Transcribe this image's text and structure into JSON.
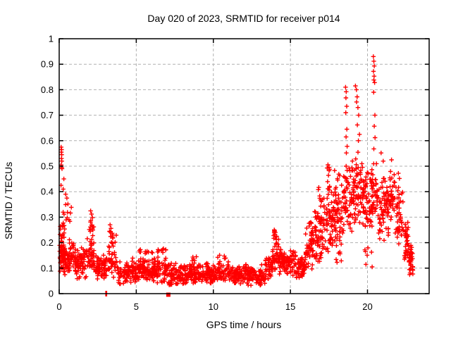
{
  "window": {
    "background": "#ffffff"
  },
  "chart_data": {
    "type": "scatter",
    "title": "Day 020 of 2023, SRMTID for receiver p014",
    "xlabel": "GPS time / hours",
    "ylabel": "SRMTID / TECUs",
    "xlim": [
      0,
      24
    ],
    "ylim": [
      0,
      1
    ],
    "xticks": {
      "values": [
        0,
        5,
        10,
        15,
        20
      ],
      "labels": [
        "0",
        "5",
        "10",
        "15",
        "20"
      ]
    },
    "yticks": {
      "values": [
        0,
        0.1,
        0.2,
        0.3,
        0.4,
        0.5,
        0.6,
        0.7,
        0.8,
        0.9,
        1
      ],
      "labels": [
        "0",
        "0.1",
        "0.2",
        "0.3",
        "0.4",
        "0.5",
        "0.6",
        "0.7",
        "0.8",
        "0.9",
        "1"
      ]
    },
    "grid": {
      "shown": true,
      "style": "dashed",
      "color": "#b0b0b0"
    },
    "legend": "none",
    "axis_color": "#000000",
    "marker": {
      "type": "plus",
      "color": "#ff0000",
      "size": 7
    },
    "series": [
      {
        "name": "SRMTID",
        "description": "Dense noisy scatter; band_segments give [x_start_h, x_end_h, y_min_TECU, y_max_TECU, n_points] envelopes read from the plot; outlier_points are individually visible markers.",
        "band_segments": [
          [
            0.02,
            0.35,
            0.08,
            0.23,
            45
          ],
          [
            0.05,
            0.45,
            0.2,
            0.3,
            14
          ],
          [
            0.25,
            0.8,
            0.27,
            0.36,
            12
          ],
          [
            0.3,
            1.05,
            0.07,
            0.22,
            75
          ],
          [
            1.05,
            1.75,
            0.055,
            0.19,
            65
          ],
          [
            1.75,
            2.3,
            0.07,
            0.24,
            50
          ],
          [
            1.95,
            2.28,
            0.23,
            0.31,
            12
          ],
          [
            2.3,
            3.15,
            0.05,
            0.16,
            65
          ],
          [
            3.18,
            3.78,
            0.06,
            0.23,
            40
          ],
          [
            3.25,
            3.72,
            0.2,
            0.265,
            10
          ],
          [
            3.78,
            4.6,
            0.035,
            0.13,
            60
          ],
          [
            4.6,
            5.05,
            0.04,
            0.145,
            35
          ],
          [
            5.05,
            6.1,
            0.04,
            0.15,
            85
          ],
          [
            5.15,
            6.05,
            0.14,
            0.185,
            12
          ],
          [
            6.1,
            7.1,
            0.04,
            0.15,
            75
          ],
          [
            6.3,
            6.95,
            0.145,
            0.19,
            9
          ],
          [
            7.1,
            8.3,
            0.03,
            0.12,
            90
          ],
          [
            8.3,
            9.6,
            0.035,
            0.125,
            95
          ],
          [
            8.4,
            8.9,
            0.125,
            0.15,
            5
          ],
          [
            9.6,
            11.0,
            0.04,
            0.13,
            100
          ],
          [
            10.2,
            10.8,
            0.13,
            0.155,
            5
          ],
          [
            11.0,
            12.2,
            0.035,
            0.12,
            90
          ],
          [
            12.2,
            13.35,
            0.03,
            0.115,
            85
          ],
          [
            13.35,
            13.8,
            0.05,
            0.16,
            35
          ],
          [
            13.8,
            14.25,
            0.08,
            0.23,
            40
          ],
          [
            13.85,
            14.15,
            0.2,
            0.255,
            7
          ],
          [
            14.25,
            15.35,
            0.07,
            0.2,
            90
          ],
          [
            15.35,
            15.95,
            0.05,
            0.155,
            50
          ],
          [
            15.95,
            16.55,
            0.09,
            0.27,
            55
          ],
          [
            16.1,
            16.5,
            0.25,
            0.31,
            6
          ],
          [
            16.55,
            17.15,
            0.11,
            0.36,
            55
          ],
          [
            16.8,
            17.15,
            0.33,
            0.42,
            7
          ],
          [
            17.15,
            17.75,
            0.14,
            0.47,
            60
          ],
          [
            17.3,
            17.6,
            0.45,
            0.53,
            6
          ],
          [
            17.75,
            18.45,
            0.18,
            0.52,
            70
          ],
          [
            17.8,
            18.4,
            0.12,
            0.18,
            6
          ],
          [
            18.45,
            19.15,
            0.22,
            0.56,
            70
          ],
          [
            19.15,
            19.75,
            0.27,
            0.58,
            60
          ],
          [
            19.75,
            20.3,
            0.24,
            0.55,
            60
          ],
          [
            19.8,
            20.3,
            0.12,
            0.2,
            5
          ],
          [
            20.3,
            20.65,
            0.25,
            0.55,
            35
          ],
          [
            20.65,
            21.4,
            0.2,
            0.5,
            70
          ],
          [
            21.4,
            21.78,
            0.27,
            0.52,
            35
          ],
          [
            21.78,
            22.3,
            0.18,
            0.46,
            45
          ],
          [
            22.3,
            22.65,
            0.11,
            0.3,
            35
          ],
          [
            22.65,
            22.95,
            0.065,
            0.2,
            40
          ]
        ],
        "outlier_points": [
          [
            0.13,
            0.575
          ],
          [
            0.155,
            0.565
          ],
          [
            0.14,
            0.555
          ],
          [
            0.165,
            0.545
          ],
          [
            0.15,
            0.53
          ],
          [
            0.17,
            0.52
          ],
          [
            0.13,
            0.505
          ],
          [
            0.16,
            0.495
          ],
          [
            0.185,
            0.49
          ],
          [
            0.3,
            0.45
          ],
          [
            0.12,
            0.425
          ],
          [
            0.26,
            0.41
          ],
          [
            0.42,
            0.39
          ],
          [
            0.5,
            0.375
          ],
          [
            2.04,
            0.325
          ],
          [
            2.1,
            0.312
          ],
          [
            2.16,
            0.298
          ],
          [
            3.3,
            0.27
          ],
          [
            3.36,
            0.256
          ],
          [
            13.95,
            0.25
          ],
          [
            14.02,
            0.24
          ],
          [
            16.62,
            0.3
          ],
          [
            18.58,
            0.81
          ],
          [
            18.62,
            0.792
          ],
          [
            18.6,
            0.768
          ],
          [
            18.65,
            0.735
          ],
          [
            18.59,
            0.71
          ],
          [
            18.66,
            0.645
          ],
          [
            18.61,
            0.615
          ],
          [
            18.68,
            0.578
          ],
          [
            18.63,
            0.552
          ],
          [
            19.22,
            0.815
          ],
          [
            19.28,
            0.8
          ],
          [
            19.33,
            0.772
          ],
          [
            19.29,
            0.752
          ],
          [
            19.38,
            0.73
          ],
          [
            19.43,
            0.7
          ],
          [
            19.34,
            0.662
          ],
          [
            19.48,
            0.625
          ],
          [
            19.41,
            0.6
          ],
          [
            19.9,
            0.115
          ],
          [
            20.38,
            0.93
          ],
          [
            20.41,
            0.912
          ],
          [
            20.44,
            0.893
          ],
          [
            20.39,
            0.872
          ],
          [
            20.43,
            0.853
          ],
          [
            20.41,
            0.838
          ],
          [
            20.46,
            0.828
          ],
          [
            20.4,
            0.79
          ],
          [
            20.48,
            0.7
          ],
          [
            20.44,
            0.657
          ],
          [
            20.49,
            0.612
          ],
          [
            20.41,
            0.568
          ],
          [
            20.3,
            0.105
          ],
          [
            20.88,
            0.552
          ],
          [
            21.02,
            0.52
          ],
          [
            21.56,
            0.525
          ],
          [
            22.0,
            0.472
          ],
          [
            22.07,
            0.452
          ]
        ]
      }
    ],
    "special_markers": [
      {
        "type": "filled-square",
        "x": 7.08,
        "y": 0,
        "color": "#ff0000",
        "size": 6
      },
      {
        "type": "vbar",
        "x": 3.02,
        "y": 0,
        "color": "#ff0000",
        "size": 8
      },
      {
        "type": "vbar",
        "x": 3.08,
        "y": 0,
        "color": "#ff0000",
        "size": 8
      }
    ]
  }
}
